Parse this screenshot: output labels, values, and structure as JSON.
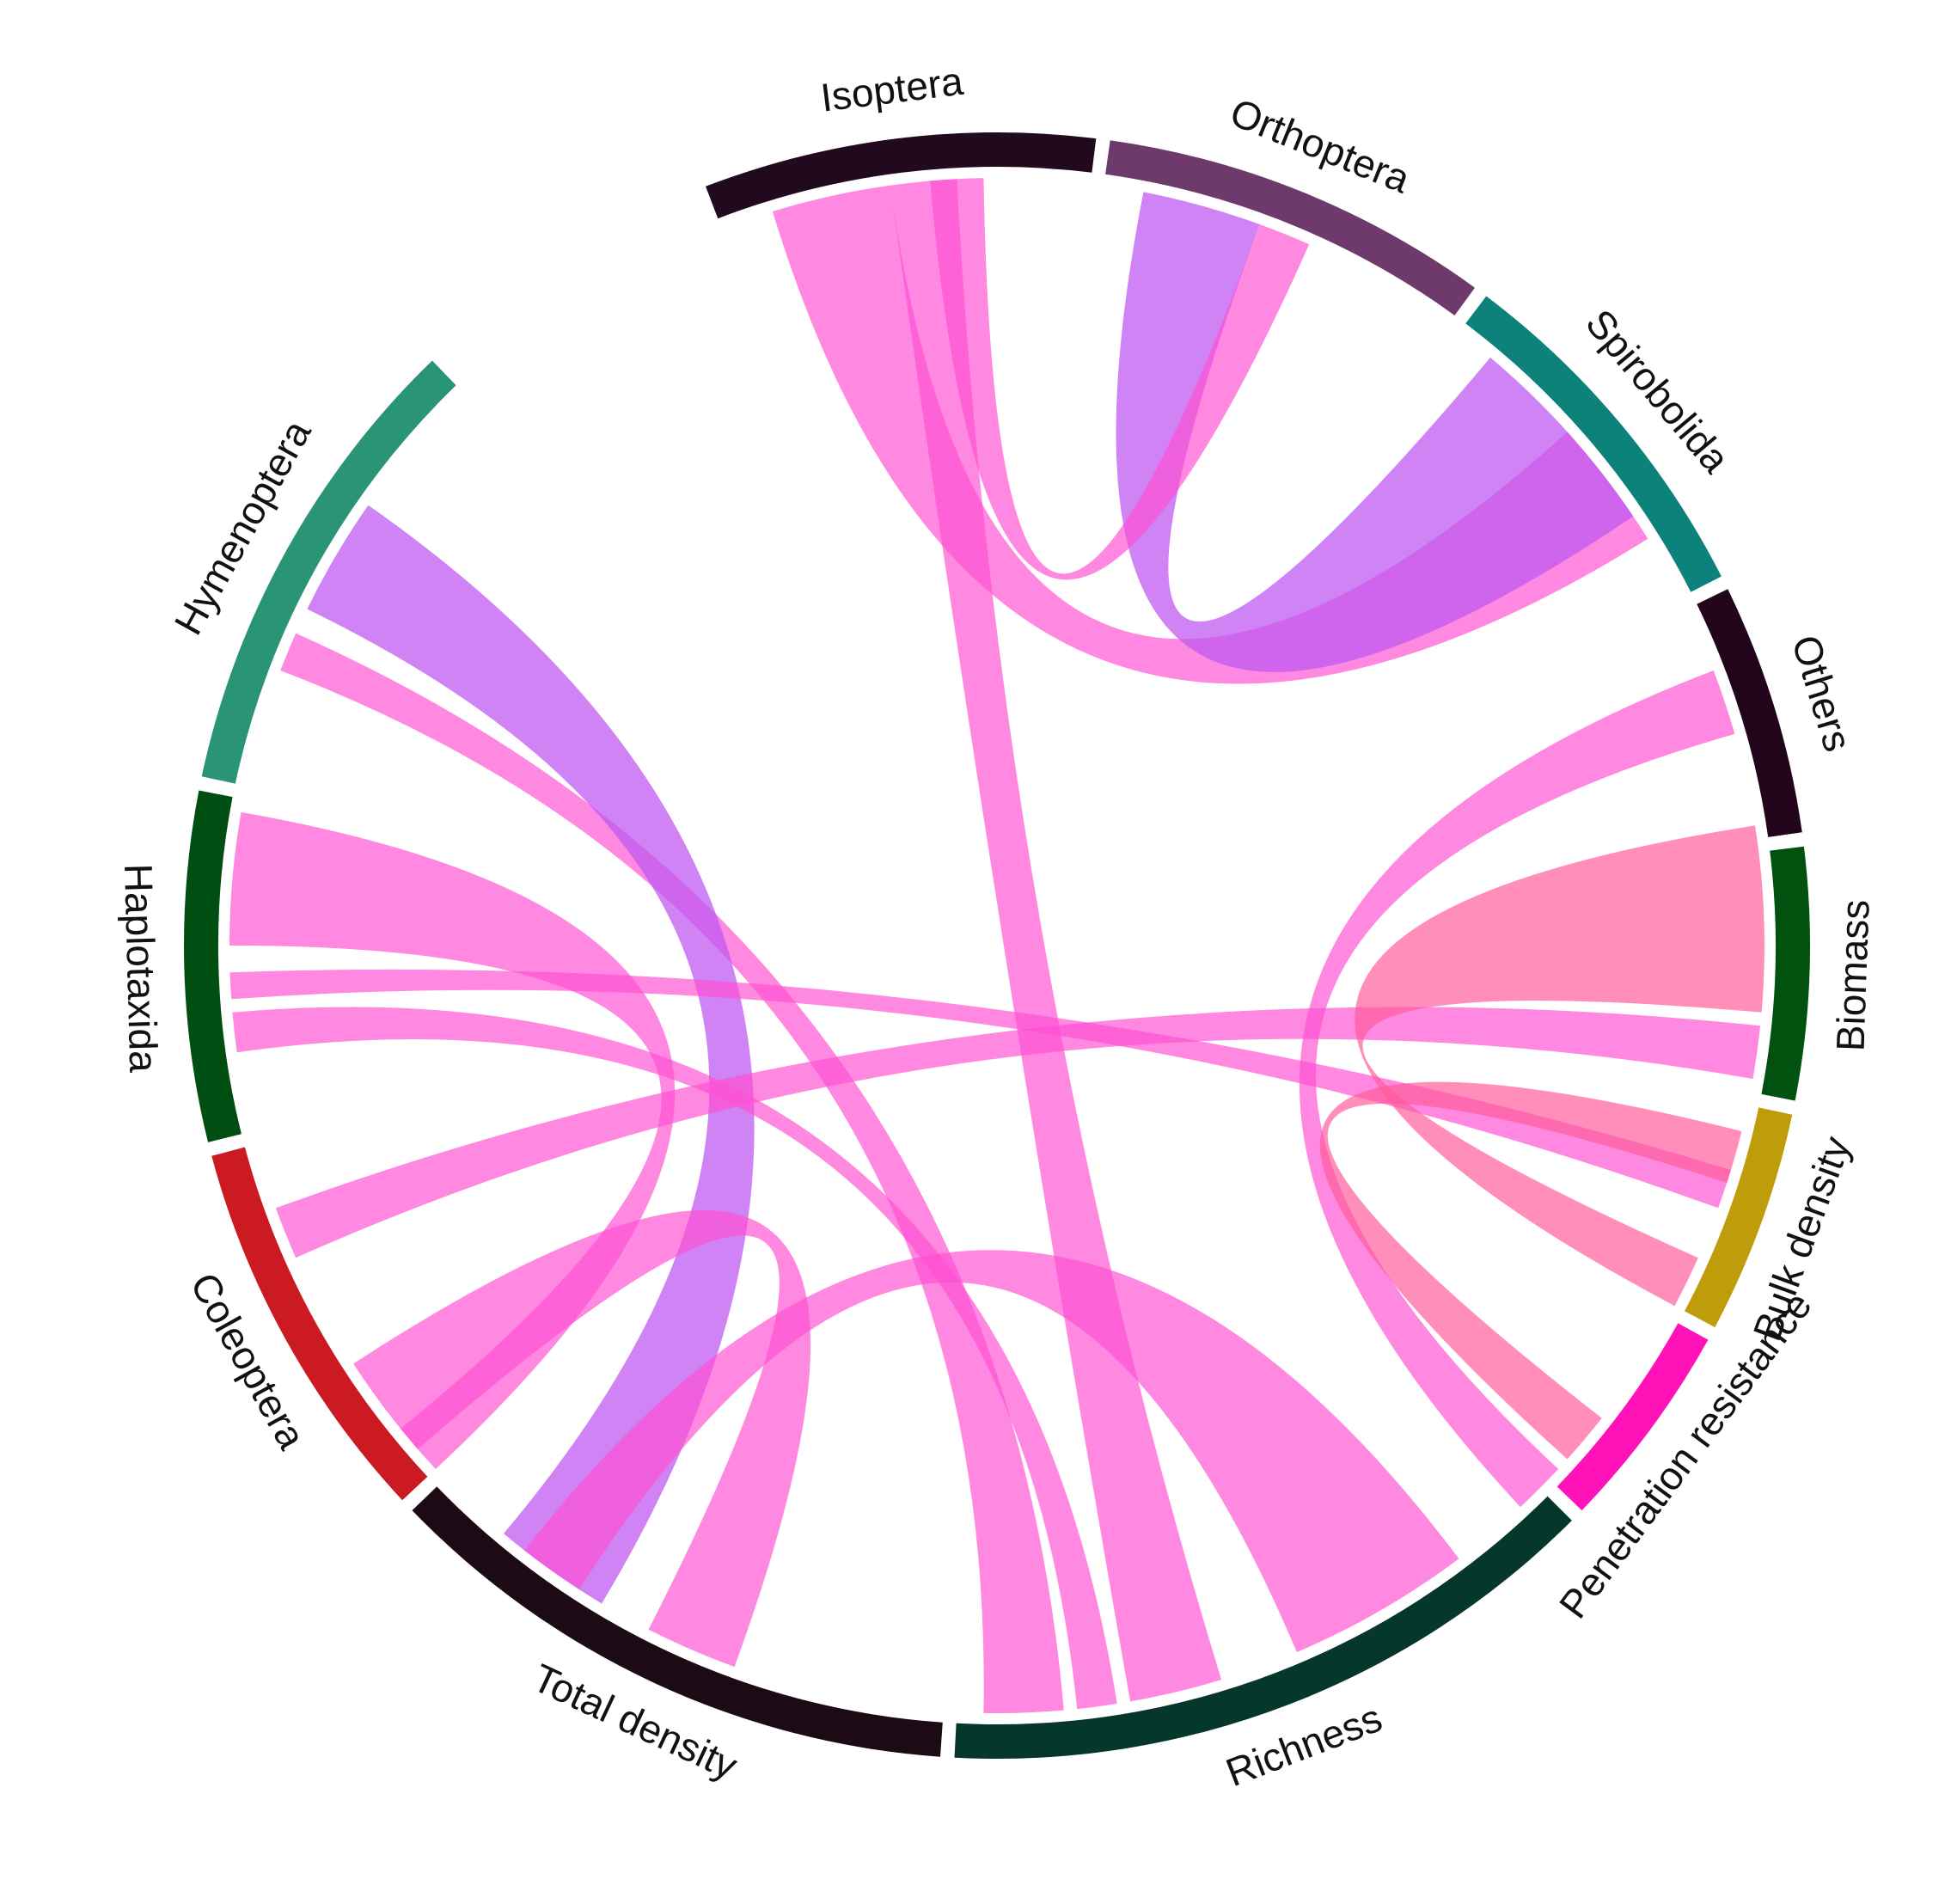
{
  "colors": {
    "positive_ribbon": "#ff4fd3",
    "negative_ribbon": "#c05af0",
    "bulk_density_ribbon": "#ff5a9a",
    "background": "#ffffff"
  },
  "sectors": [
    {
      "id": "isoptera",
      "label": "Isoptera",
      "color": "#220a1e"
    },
    {
      "id": "orthoptera",
      "label": "Orthoptera",
      "color": "#6e3a6c"
    },
    {
      "id": "spirobolida",
      "label": "Spirobolida",
      "color": "#0d827a"
    },
    {
      "id": "others",
      "label": "Others",
      "color": "#22051a"
    },
    {
      "id": "biomass",
      "label": "Biomass",
      "color": "#00520e"
    },
    {
      "id": "bulk-density",
      "label": "Bulk density",
      "color": "#bf9c0a"
    },
    {
      "id": "penetration-resistance",
      "label": "Penetration resistance",
      "color": "#ff12b8"
    },
    {
      "id": "richness",
      "label": "Richness",
      "color": "#06372d"
    },
    {
      "id": "total-density",
      "label": "Total density",
      "color": "#1c0b14"
    },
    {
      "id": "coleoptera",
      "label": "Coleoptera",
      "color": "#cc1a22"
    },
    {
      "id": "haplotaxida",
      "label": "Haplotaxida",
      "color": "#004e12"
    },
    {
      "id": "hymenoptera",
      "label": "Hymenoptera",
      "color": "#2a9476"
    }
  ],
  "links": [
    {
      "from": "isoptera",
      "to": "richness",
      "color": "positive"
    },
    {
      "from": "isoptera",
      "to": "spirobolida",
      "color": "positive"
    },
    {
      "from": "orthoptera",
      "to": "spirobolida",
      "color": "negative"
    },
    {
      "from": "orthoptera",
      "to": "isoptera",
      "color": "positive"
    },
    {
      "from": "hymenoptera",
      "to": "richness",
      "color": "positive"
    },
    {
      "from": "hymenoptera",
      "to": "total-density",
      "color": "negative"
    },
    {
      "from": "haplotaxida",
      "to": "richness",
      "color": "positive"
    },
    {
      "from": "haplotaxida",
      "to": "biomass",
      "color": "positive"
    },
    {
      "from": "haplotaxida",
      "to": "total-density",
      "color": "positive"
    },
    {
      "from": "coleoptera",
      "to": "biomass",
      "color": "positive"
    },
    {
      "from": "coleoptera",
      "to": "total-density",
      "color": "positive"
    },
    {
      "from": "total-density",
      "to": "richness",
      "color": "positive"
    },
    {
      "from": "others",
      "to": "penetration-resistance",
      "color": "positive"
    },
    {
      "from": "biomass",
      "to": "bulk-density",
      "color": "bulk"
    },
    {
      "from": "bulk-density",
      "to": "penetration-resistance",
      "color": "bulk"
    }
  ]
}
